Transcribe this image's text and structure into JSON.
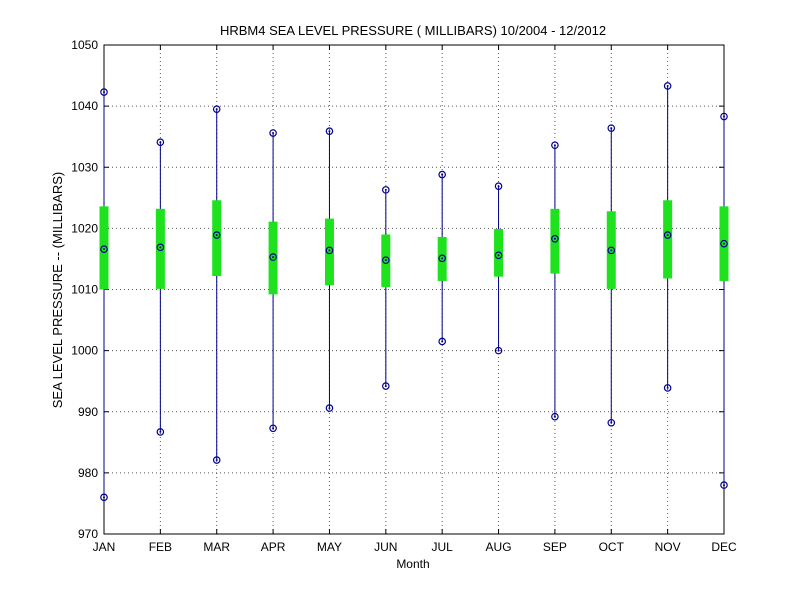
{
  "chart_data": {
    "type": "box",
    "title": "HRBM4  SEA LEVEL PRESSURE ( MILLIBARS) 10/2004 - 12/2012",
    "xlabel": "Month",
    "ylabel": "SEA LEVEL PRESSURE -- (MILLIBARS)",
    "ylim": [
      970,
      1050
    ],
    "yticks": [
      970,
      980,
      990,
      1000,
      1010,
      1020,
      1030,
      1040,
      1050
    ],
    "grid": true,
    "categories": [
      "JAN",
      "FEB",
      "MAR",
      "APR",
      "MAY",
      "JUN",
      "JUL",
      "AUG",
      "SEP",
      "OCT",
      "NOV",
      "DEC"
    ],
    "min": [
      976.0,
      986.7,
      982.1,
      987.3,
      990.6,
      994.2,
      1001.5,
      1000.0,
      989.2,
      988.2,
      993.9,
      978.0
    ],
    "max": [
      1042.3,
      1034.1,
      1039.5,
      1035.6,
      1035.9,
      1026.3,
      1028.8,
      1026.9,
      1033.6,
      1036.4,
      1043.3,
      1038.3
    ],
    "mean": [
      1016.6,
      1016.9,
      1018.9,
      1015.3,
      1016.4,
      1014.8,
      1015.1,
      1015.6,
      1018.3,
      1016.4,
      1018.9,
      1017.5
    ],
    "std_low": [
      1010.0,
      1010.1,
      1012.2,
      1009.2,
      1010.7,
      1010.4,
      1011.4,
      1012.1,
      1012.6,
      1010.1,
      1011.8,
      1011.4
    ],
    "std_high": [
      1023.6,
      1023.2,
      1024.6,
      1021.1,
      1021.6,
      1019.0,
      1018.6,
      1019.9,
      1023.2,
      1022.8,
      1024.6,
      1023.6
    ],
    "colors": {
      "range_line": "#00008b",
      "marker": "#00008b",
      "std_bar": "#1ee21e",
      "grid": "#555555",
      "axis": "#000000"
    }
  }
}
